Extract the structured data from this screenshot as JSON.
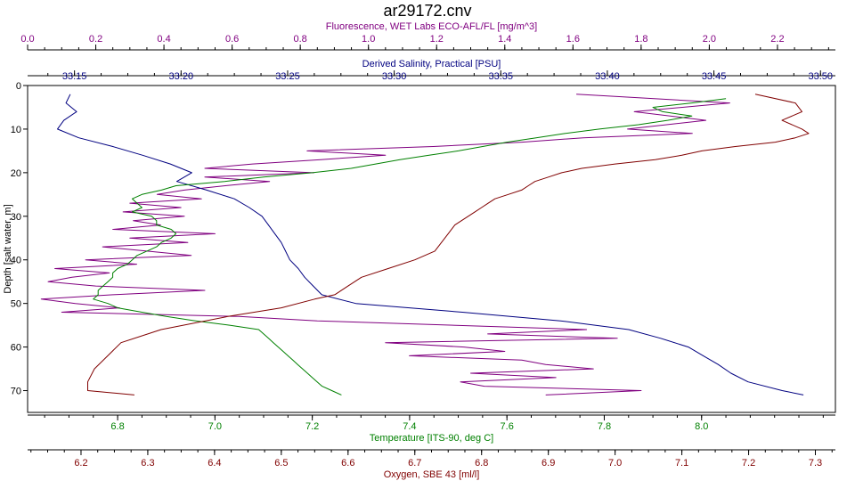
{
  "chart_data": {
    "type": "line",
    "title": "ar29172.cnv",
    "grid": false,
    "legend": "none",
    "y_axis": {
      "label": "Depth [salt water, m]",
      "range": [
        75,
        0
      ],
      "ticks": [
        0,
        10,
        20,
        30,
        40,
        50,
        60,
        70
      ],
      "tick_labels": [
        "0",
        "10",
        "20",
        "30",
        "40",
        "50",
        "60",
        "70"
      ]
    },
    "x_axes": [
      {
        "id": "fluorescence",
        "label": "Fluorescence, WET Labs ECO-AFL/FL [mg/m^3]",
        "position": "top-outer",
        "range": [
          0.0,
          2.37
        ],
        "ticks": [
          0.0,
          0.2,
          0.4,
          0.6,
          0.8,
          1.0,
          1.2,
          1.4,
          1.6,
          1.8,
          2.0,
          2.2
        ],
        "tick_labels": [
          "0.0",
          "0.2",
          "0.4",
          "0.6",
          "0.8",
          "1.0",
          "1.2",
          "1.4",
          "1.6",
          "1.8",
          "2.0",
          "2.2"
        ],
        "color": "#800080"
      },
      {
        "id": "salinity",
        "label": "Derived Salinity, Practical [PSU]",
        "position": "top-inner",
        "range": [
          33.128,
          33.507
        ],
        "ticks": [
          33.15,
          33.2,
          33.25,
          33.3,
          33.35,
          33.4,
          33.45,
          33.5
        ],
        "tick_labels": [
          "33.15",
          "33.20",
          "33.25",
          "33.30",
          "33.35",
          "33.40",
          "33.45",
          "33.50"
        ],
        "color": "#000080"
      },
      {
        "id": "temperature",
        "label": "Temperature [ITS-90, deg C]",
        "position": "bottom-inner",
        "range": [
          6.615,
          8.275
        ],
        "ticks": [
          6.8,
          7.0,
          7.2,
          7.4,
          7.6,
          7.8,
          8.0
        ],
        "tick_labels": [
          "6.8",
          "7.0",
          "7.2",
          "7.4",
          "7.6",
          "7.8",
          "8.0"
        ],
        "color": "#008000"
      },
      {
        "id": "oxygen",
        "label": "Oxygen, SBE 43 [ml/l]",
        "position": "bottom-outer",
        "range": [
          6.12,
          7.33
        ],
        "ticks": [
          6.2,
          6.3,
          6.4,
          6.5,
          6.6,
          6.7,
          6.8,
          6.9,
          7.0,
          7.1,
          7.2,
          7.3
        ],
        "tick_labels": [
          "6.2",
          "6.3",
          "6.4",
          "6.5",
          "6.6",
          "6.7",
          "6.8",
          "6.9",
          "7.0",
          "7.1",
          "7.2",
          "7.3"
        ],
        "color": "#800000"
      }
    ],
    "series": [
      {
        "axis": "fluorescence",
        "color": "#800080",
        "points": [
          [
            1.61,
            2
          ],
          [
            2.06,
            4
          ],
          [
            1.78,
            6
          ],
          [
            1.99,
            8
          ],
          [
            1.76,
            10
          ],
          [
            1.95,
            11
          ],
          [
            1.63,
            12
          ],
          [
            1.45,
            13
          ],
          [
            1.19,
            14
          ],
          [
            0.82,
            15
          ],
          [
            1.05,
            16
          ],
          [
            0.86,
            17
          ],
          [
            0.66,
            18
          ],
          [
            0.52,
            19
          ],
          [
            0.84,
            20
          ],
          [
            0.52,
            21
          ],
          [
            0.71,
            22
          ],
          [
            0.58,
            23
          ],
          [
            0.46,
            24
          ],
          [
            0.38,
            25
          ],
          [
            0.51,
            26
          ],
          [
            0.3,
            27
          ],
          [
            0.45,
            28
          ],
          [
            0.28,
            29
          ],
          [
            0.46,
            30
          ],
          [
            0.31,
            31
          ],
          [
            0.39,
            32
          ],
          [
            0.25,
            33
          ],
          [
            0.55,
            34
          ],
          [
            0.3,
            35
          ],
          [
            0.47,
            36
          ],
          [
            0.22,
            37
          ],
          [
            0.35,
            38
          ],
          [
            0.48,
            39
          ],
          [
            0.17,
            40
          ],
          [
            0.32,
            41
          ],
          [
            0.08,
            42
          ],
          [
            0.24,
            43
          ],
          [
            0.13,
            44
          ],
          [
            0.06,
            45
          ],
          [
            0.2,
            46
          ],
          [
            0.52,
            47
          ],
          [
            0.25,
            48
          ],
          [
            0.04,
            49
          ],
          [
            0.14,
            50
          ],
          [
            0.27,
            51
          ],
          [
            0.1,
            52
          ],
          [
            0.62,
            53
          ],
          [
            0.85,
            54
          ],
          [
            1.64,
            56
          ],
          [
            1.35,
            57
          ],
          [
            1.73,
            58
          ],
          [
            1.05,
            59
          ],
          [
            1.28,
            60
          ],
          [
            1.4,
            61
          ],
          [
            1.12,
            62
          ],
          [
            1.45,
            63
          ],
          [
            1.52,
            64
          ],
          [
            1.66,
            65
          ],
          [
            1.3,
            66
          ],
          [
            1.55,
            67
          ],
          [
            1.27,
            68
          ],
          [
            1.34,
            69
          ],
          [
            1.8,
            70
          ],
          [
            1.52,
            71
          ]
        ]
      },
      {
        "axis": "salinity",
        "color": "#000080",
        "points": [
          [
            33.148,
            2
          ],
          [
            33.146,
            4
          ],
          [
            33.151,
            6
          ],
          [
            33.145,
            8
          ],
          [
            33.142,
            10
          ],
          [
            33.152,
            12
          ],
          [
            33.168,
            14
          ],
          [
            33.182,
            16
          ],
          [
            33.195,
            18
          ],
          [
            33.205,
            20
          ],
          [
            33.198,
            22
          ],
          [
            33.212,
            24
          ],
          [
            33.225,
            26
          ],
          [
            33.232,
            28
          ],
          [
            33.238,
            30
          ],
          [
            33.241,
            32
          ],
          [
            33.244,
            34
          ],
          [
            33.247,
            36
          ],
          [
            33.249,
            38
          ],
          [
            33.251,
            40
          ],
          [
            33.255,
            42
          ],
          [
            33.258,
            44
          ],
          [
            33.262,
            46
          ],
          [
            33.266,
            48
          ],
          [
            33.282,
            50
          ],
          [
            33.332,
            52
          ],
          [
            33.378,
            54
          ],
          [
            33.41,
            56
          ],
          [
            33.425,
            58
          ],
          [
            33.438,
            60
          ],
          [
            33.445,
            62
          ],
          [
            33.452,
            64
          ],
          [
            33.458,
            66
          ],
          [
            33.466,
            68
          ],
          [
            33.482,
            70
          ],
          [
            33.492,
            71
          ]
        ]
      },
      {
        "axis": "temperature",
        "color": "#008000",
        "points": [
          [
            8.05,
            3
          ],
          [
            7.98,
            4
          ],
          [
            7.9,
            5
          ],
          [
            7.92,
            6
          ],
          [
            7.98,
            7
          ],
          [
            7.93,
            8
          ],
          [
            7.87,
            9
          ],
          [
            7.79,
            10
          ],
          [
            7.72,
            11
          ],
          [
            7.66,
            12
          ],
          [
            7.6,
            13
          ],
          [
            7.55,
            14
          ],
          [
            7.5,
            15
          ],
          [
            7.44,
            16
          ],
          [
            7.38,
            17
          ],
          [
            7.33,
            18
          ],
          [
            7.28,
            19
          ],
          [
            7.2,
            20
          ],
          [
            7.1,
            21
          ],
          [
            7.02,
            22
          ],
          [
            6.92,
            23
          ],
          [
            6.89,
            24
          ],
          [
            6.85,
            25
          ],
          [
            6.83,
            26
          ],
          [
            6.84,
            27
          ],
          [
            6.85,
            28
          ],
          [
            6.83,
            29
          ],
          [
            6.87,
            30
          ],
          [
            6.88,
            31
          ],
          [
            6.88,
            32
          ],
          [
            6.91,
            33
          ],
          [
            6.92,
            34
          ],
          [
            6.91,
            35
          ],
          [
            6.89,
            36
          ],
          [
            6.88,
            37
          ],
          [
            6.86,
            38
          ],
          [
            6.84,
            39
          ],
          [
            6.83,
            40
          ],
          [
            6.82,
            41
          ],
          [
            6.8,
            42
          ],
          [
            6.79,
            43
          ],
          [
            6.79,
            44
          ],
          [
            6.78,
            45
          ],
          [
            6.77,
            46
          ],
          [
            6.76,
            47
          ],
          [
            6.76,
            48
          ],
          [
            6.75,
            49
          ],
          [
            6.78,
            50
          ],
          [
            6.8,
            51
          ],
          [
            6.85,
            52
          ],
          [
            6.9,
            53
          ],
          [
            6.96,
            54
          ],
          [
            7.03,
            55
          ],
          [
            7.09,
            56
          ],
          [
            7.1,
            57
          ],
          [
            7.11,
            58
          ],
          [
            7.12,
            59
          ],
          [
            7.13,
            60
          ],
          [
            7.14,
            61
          ],
          [
            7.15,
            62
          ],
          [
            7.16,
            63
          ],
          [
            7.17,
            64
          ],
          [
            7.18,
            65
          ],
          [
            7.19,
            66
          ],
          [
            7.2,
            67
          ],
          [
            7.21,
            68
          ],
          [
            7.22,
            69
          ],
          [
            7.24,
            70
          ],
          [
            7.26,
            71
          ]
        ]
      },
      {
        "axis": "oxygen",
        "color": "#800000",
        "points": [
          [
            7.21,
            2
          ],
          [
            7.27,
            4
          ],
          [
            7.28,
            6
          ],
          [
            7.25,
            8
          ],
          [
            7.28,
            10
          ],
          [
            7.29,
            11
          ],
          [
            7.27,
            12
          ],
          [
            7.24,
            13
          ],
          [
            7.18,
            14
          ],
          [
            7.13,
            15
          ],
          [
            7.1,
            16
          ],
          [
            7.06,
            17
          ],
          [
            7.0,
            18
          ],
          [
            6.95,
            19
          ],
          [
            6.92,
            20
          ],
          [
            6.9,
            21
          ],
          [
            6.88,
            22
          ],
          [
            6.87,
            23
          ],
          [
            6.86,
            24
          ],
          [
            6.84,
            25
          ],
          [
            6.82,
            26
          ],
          [
            6.81,
            27
          ],
          [
            6.8,
            28
          ],
          [
            6.79,
            29
          ],
          [
            6.78,
            30
          ],
          [
            6.76,
            32
          ],
          [
            6.75,
            34
          ],
          [
            6.74,
            36
          ],
          [
            6.73,
            38
          ],
          [
            6.7,
            40
          ],
          [
            6.66,
            42
          ],
          [
            6.62,
            44
          ],
          [
            6.6,
            46
          ],
          [
            6.58,
            48
          ],
          [
            6.55,
            49
          ],
          [
            6.5,
            51
          ],
          [
            6.42,
            53
          ],
          [
            6.32,
            56
          ],
          [
            6.26,
            59
          ],
          [
            6.24,
            62
          ],
          [
            6.22,
            65
          ],
          [
            6.21,
            68
          ],
          [
            6.21,
            70
          ],
          [
            6.28,
            71
          ]
        ]
      }
    ]
  }
}
